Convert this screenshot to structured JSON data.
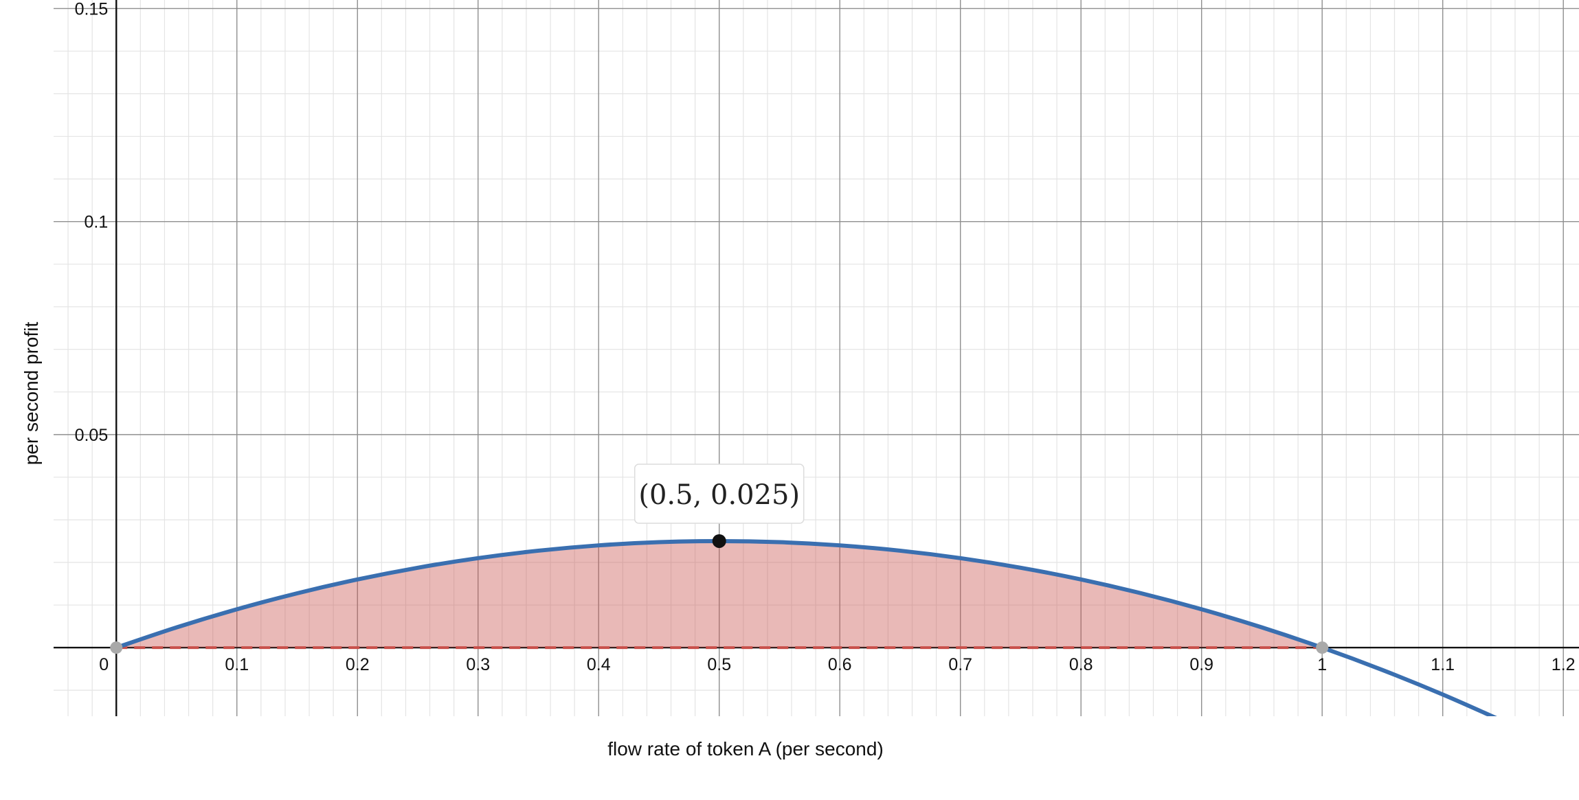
{
  "chart_data": {
    "type": "area",
    "title": "",
    "xlabel": "flow rate of token A (per second)",
    "ylabel": "per second profit",
    "xlim": [
      -0.052,
      1.213
    ],
    "ylim": [
      -0.0161,
      0.152
    ],
    "x_ticks": [
      0,
      0.1,
      0.2,
      0.3,
      0.4,
      0.5,
      0.6,
      0.7,
      0.8,
      0.9,
      1,
      1.1,
      1.2
    ],
    "x_tick_labels": [
      "0",
      "0.1",
      "0.2",
      "0.3",
      "0.4",
      "0.5",
      "0.6",
      "0.7",
      "0.8",
      "0.9",
      "1",
      "1.1",
      "1.2"
    ],
    "y_ticks": [
      0.05,
      0.1,
      0.15
    ],
    "y_tick_labels": [
      "0.05",
      "0.1",
      "0.15"
    ],
    "grid": true,
    "minor_grid_step_x": 0.02,
    "minor_grid_step_y": 0.01,
    "series": [
      {
        "kind": "curve",
        "color": "#3a6fb0",
        "x": [
          0,
          0.05,
          0.1,
          0.15,
          0.2,
          0.25,
          0.3,
          0.35,
          0.4,
          0.45,
          0.5,
          0.55,
          0.6,
          0.65,
          0.7,
          0.75,
          0.8,
          0.85,
          0.9,
          0.95,
          1.0,
          1.05,
          1.1,
          1.15
        ],
        "y": [
          0,
          0.00475,
          0.009,
          0.01275,
          0.016,
          0.01875,
          0.021,
          0.02275,
          0.024,
          0.02475,
          0.025,
          0.02475,
          0.024,
          0.02275,
          0.021,
          0.01875,
          0.016,
          0.01275,
          0.009,
          0.00475,
          0,
          -0.00525,
          -0.011,
          -0.01725
        ]
      },
      {
        "kind": "shaded-region",
        "color": "#c8504b",
        "x_range": [
          0,
          1
        ]
      },
      {
        "kind": "dashed-baseline",
        "color": "#c8504b",
        "y": 0,
        "x_range": [
          0,
          1
        ]
      }
    ],
    "points": [
      {
        "x": 0,
        "y": 0,
        "color": "#a9a9a9"
      },
      {
        "x": 1,
        "y": 0,
        "color": "#a9a9a9"
      },
      {
        "x": 0.5,
        "y": 0.025,
        "color": "#111111"
      }
    ],
    "annotations": [
      {
        "text": "(0.5, 0.025)",
        "x": 0.5,
        "y": 0.025
      }
    ]
  }
}
